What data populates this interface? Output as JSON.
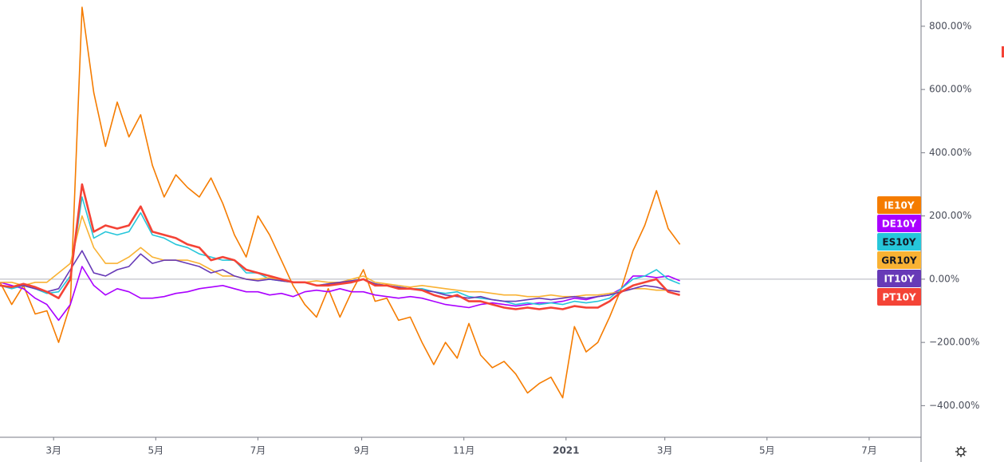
{
  "chart_data": {
    "type": "line",
    "x": [
      28,
      35,
      42,
      49,
      56,
      63,
      70,
      77,
      84,
      91,
      98,
      105,
      112,
      119,
      126,
      133,
      140,
      147,
      154,
      161,
      168,
      175,
      182,
      189,
      196,
      203,
      210,
      217,
      224,
      231,
      238,
      245,
      252,
      259,
      266,
      273,
      280,
      287,
      294,
      301,
      308,
      315,
      322,
      329,
      336,
      343,
      350,
      357,
      364,
      371,
      378,
      385,
      392,
      399,
      406,
      413,
      420,
      427,
      434
    ],
    "xlim": [
      28,
      578
    ],
    "xticks": [
      {
        "value": 60,
        "label": "3月"
      },
      {
        "value": 121,
        "label": "5月"
      },
      {
        "value": 182,
        "label": "7月"
      },
      {
        "value": 244,
        "label": "9月"
      },
      {
        "value": 305,
        "label": "11月"
      },
      {
        "value": 366,
        "label": "2021"
      },
      {
        "value": 425,
        "label": "3月"
      },
      {
        "value": 486,
        "label": "5月"
      },
      {
        "value": 547,
        "label": "7月"
      }
    ],
    "ylim": [
      -500,
      883
    ],
    "yticks": [
      {
        "value": -400,
        "label": "−400.00%"
      },
      {
        "value": -200,
        "label": "−200.00%"
      },
      {
        "value": 0,
        "label": "0.00%"
      },
      {
        "value": 200,
        "label": "200.00%"
      },
      {
        "value": 400,
        "label": "400.00%"
      },
      {
        "value": 600,
        "label": "600.00%"
      },
      {
        "value": 800,
        "label": "800.00%"
      }
    ],
    "grid": false,
    "legend": "right",
    "series": [
      {
        "name": "IE10Y",
        "color": "#f57c00",
        "values": [
          -10,
          -80,
          -20,
          -110,
          -100,
          -200,
          -80,
          860,
          590,
          420,
          560,
          450,
          520,
          360,
          260,
          330,
          290,
          260,
          320,
          240,
          140,
          70,
          200,
          140,
          60,
          -20,
          -80,
          -120,
          -30,
          -120,
          -40,
          30,
          -70,
          -60,
          -130,
          -120,
          -200,
          -270,
          -200,
          -250,
          -140,
          -240,
          -280,
          -260,
          -300,
          -360,
          -330,
          -310,
          -375,
          -150,
          -230,
          -200,
          -120,
          -30,
          90,
          170,
          280,
          160,
          110
        ]
      },
      {
        "name": "DE10Y",
        "color": "#aa00ff",
        "values": [
          -10,
          -20,
          -30,
          -60,
          -80,
          -130,
          -80,
          40,
          -20,
          -50,
          -30,
          -40,
          -60,
          -60,
          -55,
          -45,
          -40,
          -30,
          -25,
          -20,
          -30,
          -40,
          -40,
          -50,
          -45,
          -55,
          -40,
          -35,
          -40,
          -30,
          -40,
          -40,
          -50,
          -55,
          -60,
          -55,
          -60,
          -70,
          -80,
          -85,
          -90,
          -80,
          -75,
          -80,
          -85,
          -80,
          -75,
          -75,
          -70,
          -60,
          -65,
          -55,
          -50,
          -30,
          10,
          10,
          5,
          10,
          -5
        ]
      },
      {
        "name": "ES10Y",
        "color": "#26c6da",
        "values": [
          -20,
          -30,
          -20,
          -30,
          -45,
          -40,
          10,
          260,
          130,
          150,
          140,
          150,
          210,
          140,
          130,
          110,
          100,
          80,
          70,
          60,
          60,
          20,
          20,
          0,
          -5,
          -10,
          -10,
          -20,
          -15,
          -10,
          -5,
          0,
          -15,
          -20,
          -25,
          -30,
          -30,
          -40,
          -45,
          -40,
          -55,
          -60,
          -65,
          -70,
          -80,
          -75,
          -80,
          -75,
          -80,
          -70,
          -75,
          -70,
          -60,
          -30,
          0,
          10,
          30,
          0,
          -15
        ]
      },
      {
        "name": "GR10Y",
        "color": "#f9b233",
        "values": [
          -10,
          -10,
          -20,
          -10,
          -10,
          20,
          50,
          200,
          100,
          50,
          50,
          70,
          100,
          70,
          60,
          60,
          60,
          50,
          30,
          10,
          10,
          0,
          0,
          5,
          -5,
          -10,
          -10,
          -5,
          -10,
          -10,
          0,
          10,
          -10,
          -15,
          -20,
          -25,
          -20,
          -25,
          -30,
          -35,
          -40,
          -40,
          -45,
          -50,
          -50,
          -55,
          -55,
          -50,
          -55,
          -55,
          -50,
          -50,
          -45,
          -40,
          -30,
          -30,
          -35,
          -35,
          -40
        ]
      },
      {
        "name": "IT10Y",
        "color": "#673ab7",
        "values": [
          -20,
          -25,
          -20,
          -30,
          -40,
          -30,
          30,
          90,
          20,
          10,
          30,
          40,
          80,
          50,
          60,
          60,
          50,
          40,
          20,
          30,
          10,
          0,
          -5,
          0,
          -5,
          -10,
          -10,
          -20,
          -15,
          -10,
          -5,
          0,
          -15,
          -20,
          -25,
          -30,
          -35,
          -40,
          -50,
          -55,
          -60,
          -55,
          -65,
          -70,
          -70,
          -65,
          -60,
          -65,
          -60,
          -55,
          -60,
          -55,
          -50,
          -40,
          -30,
          -20,
          -25,
          -35,
          -40
        ]
      },
      {
        "name": "PT10Y",
        "color": "#f44336",
        "values": [
          -20,
          -25,
          -15,
          -25,
          -40,
          -60,
          0,
          300,
          150,
          170,
          160,
          170,
          230,
          150,
          140,
          130,
          110,
          100,
          60,
          70,
          60,
          30,
          20,
          10,
          0,
          -10,
          -10,
          -20,
          -20,
          -15,
          -10,
          0,
          -20,
          -20,
          -30,
          -30,
          -35,
          -50,
          -60,
          -50,
          -70,
          -70,
          -80,
          -90,
          -95,
          -90,
          -95,
          -90,
          -95,
          -85,
          -90,
          -90,
          -70,
          -40,
          -20,
          -10,
          0,
          -40,
          -50
        ]
      }
    ]
  }
}
